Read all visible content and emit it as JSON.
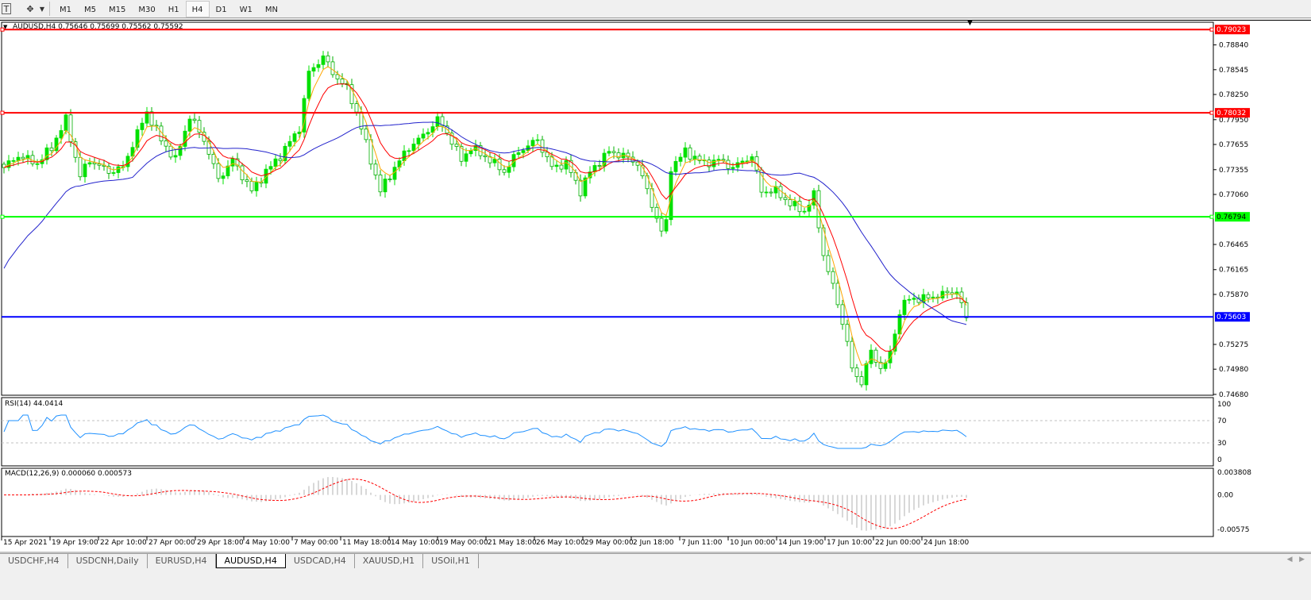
{
  "toolbar": {
    "icons": [
      "text-tool-icon",
      "arrows-tool-icon",
      "dropdown-icon"
    ],
    "timeframes": [
      "M1",
      "M5",
      "M15",
      "M30",
      "H1",
      "H4",
      "D1",
      "W1",
      "MN"
    ],
    "active_timeframe": "H4"
  },
  "chart": {
    "info": "AUDUSD,H4  0.75646 0.75699 0.75562 0.75592",
    "symbol": "AUDUSD",
    "timeframe": "H4",
    "price_ticks": [
      "0.78840",
      "0.78545",
      "0.78250",
      "0.77950",
      "0.77655",
      "0.77355",
      "0.77060",
      "0.76465",
      "0.76165",
      "0.75870",
      "0.75275",
      "0.74980",
      "0.74680"
    ],
    "price_range": [
      0.7467,
      0.7911
    ],
    "hlines": [
      {
        "label": "0.79023",
        "price": 0.79023,
        "color": "#ff0000"
      },
      {
        "label": "0.78032",
        "price": 0.78032,
        "color": "#ff0000"
      },
      {
        "label": "0.76794",
        "price": 0.76794,
        "color": "#00ff00"
      },
      {
        "label": "0.75603",
        "price": 0.75603,
        "color": "#0000ff"
      }
    ],
    "colors": {
      "bull": "#00e000",
      "bear": "#00b000",
      "ma_fast": "#ffa500",
      "ma_mid": "#ff0000",
      "ma_slow": "#2222cc"
    },
    "close_path": [
      [
        0,
        0.7738
      ],
      [
        3,
        0.7752
      ],
      [
        7,
        0.7743
      ],
      [
        10,
        0.7762
      ],
      [
        13,
        0.7795
      ],
      [
        16,
        0.7728
      ],
      [
        18,
        0.7747
      ],
      [
        22,
        0.7733
      ],
      [
        25,
        0.7738
      ],
      [
        27,
        0.7766
      ],
      [
        30,
        0.7804
      ],
      [
        33,
        0.7771
      ],
      [
        36,
        0.7747
      ],
      [
        39,
        0.7799
      ],
      [
        42,
        0.7771
      ],
      [
        45,
        0.7724
      ],
      [
        48,
        0.7747
      ],
      [
        52,
        0.771
      ],
      [
        55,
        0.7733
      ],
      [
        58,
        0.7752
      ],
      [
        62,
        0.7785
      ],
      [
        64,
        0.7851
      ],
      [
        67,
        0.787
      ],
      [
        69,
        0.7851
      ],
      [
        72,
        0.7832
      ],
      [
        74,
        0.7804
      ],
      [
        77,
        0.7747
      ],
      [
        79,
        0.771
      ],
      [
        82,
        0.7738
      ],
      [
        85,
        0.7762
      ],
      [
        88,
        0.7776
      ],
      [
        91,
        0.7795
      ],
      [
        93,
        0.778
      ],
      [
        96,
        0.7747
      ],
      [
        98,
        0.7762
      ],
      [
        102,
        0.7747
      ],
      [
        105,
        0.7733
      ],
      [
        108,
        0.7757
      ],
      [
        112,
        0.7771
      ],
      [
        115,
        0.7738
      ],
      [
        118,
        0.7743
      ],
      [
        121,
        0.771
      ],
      [
        123,
        0.7733
      ],
      [
        127,
        0.7757
      ],
      [
        130,
        0.7752
      ],
      [
        133,
        0.7743
      ],
      [
        135,
        0.771
      ],
      [
        138,
        0.7662
      ],
      [
        139,
        0.7672
      ],
      [
        140,
        0.7738
      ],
      [
        143,
        0.7757
      ],
      [
        147,
        0.7743
      ],
      [
        150,
        0.7747
      ],
      [
        153,
        0.7738
      ],
      [
        157,
        0.7752
      ],
      [
        159,
        0.771
      ],
      [
        162,
        0.771
      ],
      [
        165,
        0.7695
      ],
      [
        168,
        0.7686
      ],
      [
        170,
        0.7705
      ],
      [
        172,
        0.7634
      ],
      [
        173,
        0.7615
      ],
      [
        175,
        0.7577
      ],
      [
        177,
        0.753
      ],
      [
        178,
        0.7497
      ],
      [
        180,
        0.7483
      ],
      [
        182,
        0.752
      ],
      [
        183,
        0.7506
      ],
      [
        185,
        0.7501
      ],
      [
        187,
        0.7539
      ],
      [
        188,
        0.7568
      ],
      [
        190,
        0.7582
      ],
      [
        193,
        0.7582
      ],
      [
        197,
        0.7587
      ],
      [
        200,
        0.7591
      ],
      [
        202,
        0.7559
      ]
    ],
    "time_labels": [
      "15 Apr 2021",
      "19 Apr 19:00",
      "22 Apr 10:00",
      "27 Apr 00:00",
      "29 Apr 18:00",
      "4 May 10:00",
      "7 May 00:00",
      "11 May 18:00",
      "14 May 10:00",
      "19 May 00:00",
      "21 May 18:00",
      "26 May 10:00",
      "29 May 00:00",
      "2 Jun 18:00",
      "7 Jun 11:00",
      "10 Jun 00:00",
      "14 Jun 19:00",
      "17 Jun 10:00",
      "22 Jun 00:00",
      "24 Jun 18:00"
    ]
  },
  "rsi": {
    "info": "RSI(14) 44.0414",
    "ticks": [
      "100",
      "70",
      "30",
      "0"
    ]
  },
  "macd": {
    "info": "MACD(12,26,9) 0.000060 0.000573",
    "ticks": [
      "0.003808",
      "0.00",
      "-0.00575"
    ],
    "range": [
      -0.00575,
      0.003808
    ]
  },
  "tabs": [
    {
      "label": "USDCHF,H4"
    },
    {
      "label": "USDCNH,Daily"
    },
    {
      "label": "EURUSD,H4"
    },
    {
      "label": "AUDUSD,H4",
      "active": true
    },
    {
      "label": "USDCAD,H4"
    },
    {
      "label": "XAUUSD,H1"
    },
    {
      "label": "USOil,H1"
    }
  ]
}
